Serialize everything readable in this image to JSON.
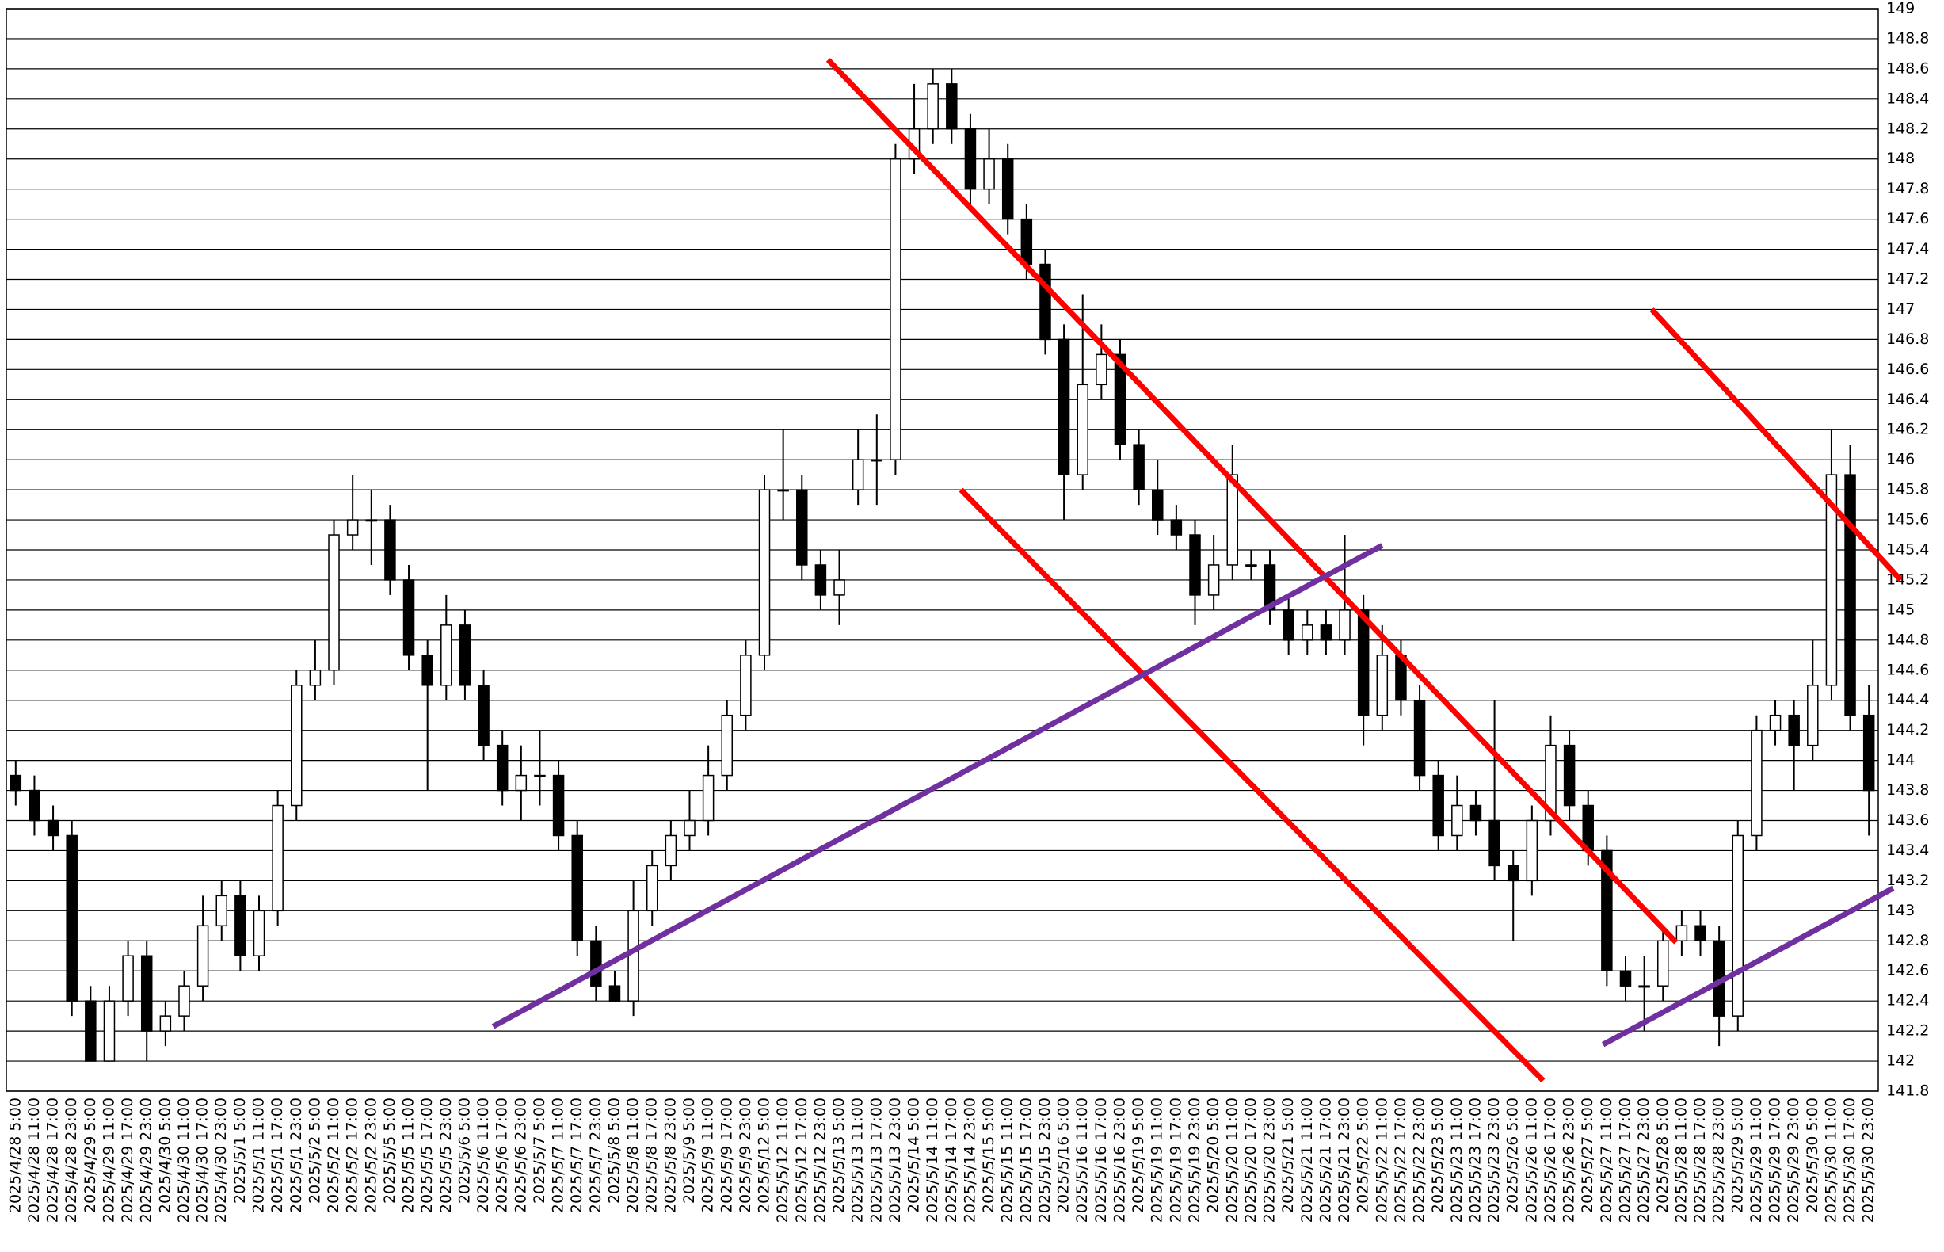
{
  "chart_data": {
    "type": "candlestick",
    "categories": [
      "2025/4/28 5:00",
      "2025/4/28 11:00",
      "2025/4/28 17:00",
      "2025/4/28 23:00",
      "2025/4/29 5:00",
      "2025/4/29 11:00",
      "2025/4/29 17:00",
      "2025/4/29 23:00",
      "2025/4/30 5:00",
      "2025/4/30 11:00",
      "2025/4/30 17:00",
      "2025/4/30 23:00",
      "2025/5/1 5:00",
      "2025/5/1 11:00",
      "2025/5/1 17:00",
      "2025/5/1 23:00",
      "2025/5/2 5:00",
      "2025/5/2 11:00",
      "2025/5/2 17:00",
      "2025/5/2 23:00",
      "2025/5/5 5:00",
      "2025/5/5 11:00",
      "2025/5/5 17:00",
      "2025/5/5 23:00",
      "2025/5/6 5:00",
      "2025/5/6 11:00",
      "2025/5/6 17:00",
      "2025/5/6 23:00",
      "2025/5/7 5:00",
      "2025/5/7 11:00",
      "2025/5/7 17:00",
      "2025/5/7 23:00",
      "2025/5/8 5:00",
      "2025/5/8 11:00",
      "2025/5/8 17:00",
      "2025/5/8 23:00",
      "2025/5/9 5:00",
      "2025/5/9 11:00",
      "2025/5/9 17:00",
      "2025/5/9 23:00",
      "2025/5/12 5:00",
      "2025/5/12 11:00",
      "2025/5/12 17:00",
      "2025/5/12 23:00",
      "2025/5/13 5:00",
      "2025/5/13 11:00",
      "2025/5/13 17:00",
      "2025/5/13 23:00",
      "2025/5/14 5:00",
      "2025/5/14 11:00",
      "2025/5/14 17:00",
      "2025/5/14 23:00",
      "2025/5/15 5:00",
      "2025/5/15 11:00",
      "2025/5/15 17:00",
      "2025/5/15 23:00",
      "2025/5/16 5:00",
      "2025/5/16 11:00",
      "2025/5/16 17:00",
      "2025/5/16 23:00",
      "2025/5/19 5:00",
      "2025/5/19 11:00",
      "2025/5/19 17:00",
      "2025/5/19 23:00",
      "2025/5/20 5:00",
      "2025/5/20 11:00",
      "2025/5/20 17:00",
      "2025/5/20 23:00",
      "2025/5/21 5:00",
      "2025/5/21 11:00",
      "2025/5/21 17:00",
      "2025/5/21 23:00",
      "2025/5/22 5:00",
      "2025/5/22 11:00",
      "2025/5/22 17:00",
      "2025/5/22 23:00",
      "2025/5/23 5:00",
      "2025/5/23 11:00",
      "2025/5/23 17:00",
      "2025/5/23 23:00",
      "2025/5/26 5:00",
      "2025/5/26 11:00",
      "2025/5/26 17:00",
      "2025/5/26 23:00",
      "2025/5/27 5:00",
      "2025/5/27 11:00",
      "2025/5/27 17:00",
      "2025/5/27 23:00",
      "2025/5/28 5:00",
      "2025/5/28 11:00",
      "2025/5/28 17:00",
      "2025/5/28 23:00",
      "2025/5/29 5:00",
      "2025/5/29 11:00",
      "2025/5/29 17:00",
      "2025/5/29 23:00",
      "2025/5/30 5:00",
      "2025/5/30 11:00",
      "2025/5/30 17:00",
      "2025/5/30 23:00"
    ],
    "ohlc": [
      [
        143.9,
        144.0,
        143.7,
        143.8
      ],
      [
        143.8,
        143.9,
        143.5,
        143.6
      ],
      [
        143.6,
        143.7,
        143.4,
        143.5
      ],
      [
        143.5,
        143.6,
        142.3,
        142.4
      ],
      [
        142.4,
        142.5,
        142.0,
        142.0
      ],
      [
        142.0,
        142.5,
        142.0,
        142.4
      ],
      [
        142.4,
        142.8,
        142.3,
        142.7
      ],
      [
        142.7,
        142.8,
        142.0,
        142.2
      ],
      [
        142.2,
        142.4,
        142.1,
        142.3
      ],
      [
        142.3,
        142.6,
        142.2,
        142.5
      ],
      [
        142.5,
        143.1,
        142.4,
        142.9
      ],
      [
        142.9,
        143.2,
        142.8,
        143.1
      ],
      [
        143.1,
        143.2,
        142.6,
        142.7
      ],
      [
        142.7,
        143.1,
        142.6,
        143.0
      ],
      [
        143.0,
        143.8,
        142.9,
        143.7
      ],
      [
        143.7,
        144.6,
        143.6,
        144.5
      ],
      [
        144.5,
        144.8,
        144.4,
        144.6
      ],
      [
        144.6,
        145.6,
        144.5,
        145.5
      ],
      [
        145.5,
        145.9,
        145.4,
        145.6
      ],
      [
        145.6,
        145.8,
        145.3,
        145.6
      ],
      [
        145.6,
        145.7,
        145.1,
        145.2
      ],
      [
        145.2,
        145.3,
        144.6,
        144.7
      ],
      [
        144.7,
        144.8,
        143.8,
        144.5
      ],
      [
        144.5,
        145.1,
        144.4,
        144.9
      ],
      [
        144.9,
        145.0,
        144.4,
        144.5
      ],
      [
        144.5,
        144.6,
        144.0,
        144.1
      ],
      [
        144.1,
        144.2,
        143.7,
        143.8
      ],
      [
        143.8,
        144.1,
        143.6,
        143.9
      ],
      [
        143.9,
        144.2,
        143.7,
        143.9
      ],
      [
        143.9,
        144.0,
        143.4,
        143.5
      ],
      [
        143.5,
        143.6,
        142.7,
        142.8
      ],
      [
        142.8,
        142.9,
        142.4,
        142.5
      ],
      [
        142.5,
        142.6,
        142.4,
        142.4
      ],
      [
        142.4,
        143.2,
        142.3,
        143.0
      ],
      [
        143.0,
        143.4,
        142.9,
        143.3
      ],
      [
        143.3,
        143.6,
        143.2,
        143.5
      ],
      [
        143.5,
        143.8,
        143.4,
        143.6
      ],
      [
        143.6,
        144.1,
        143.5,
        143.9
      ],
      [
        143.9,
        144.4,
        143.8,
        144.3
      ],
      [
        144.3,
        144.8,
        144.2,
        144.7
      ],
      [
        144.7,
        145.9,
        144.6,
        145.8
      ],
      [
        145.8,
        146.2,
        145.6,
        145.8
      ],
      [
        145.8,
        145.9,
        145.2,
        145.3
      ],
      [
        145.3,
        145.4,
        145.0,
        145.1
      ],
      [
        145.1,
        145.4,
        144.9,
        145.2
      ],
      [
        145.8,
        146.2,
        145.7,
        146.0
      ],
      [
        146.0,
        146.3,
        145.7,
        146.0
      ],
      [
        146.0,
        148.1,
        145.9,
        148.0
      ],
      [
        148.0,
        148.5,
        147.9,
        148.2
      ],
      [
        148.2,
        148.6,
        148.1,
        148.5
      ],
      [
        148.5,
        148.6,
        148.1,
        148.2
      ],
      [
        148.2,
        148.3,
        147.7,
        147.8
      ],
      [
        147.8,
        148.2,
        147.7,
        148.0
      ],
      [
        148.0,
        148.1,
        147.5,
        147.6
      ],
      [
        147.6,
        147.7,
        147.2,
        147.3
      ],
      [
        147.3,
        147.4,
        146.7,
        146.8
      ],
      [
        146.8,
        146.9,
        145.6,
        145.9
      ],
      [
        145.9,
        147.1,
        145.8,
        146.5
      ],
      [
        146.5,
        146.9,
        146.4,
        146.7
      ],
      [
        146.7,
        146.8,
        146.0,
        146.1
      ],
      [
        146.1,
        146.2,
        145.7,
        145.8
      ],
      [
        145.8,
        146.0,
        145.5,
        145.6
      ],
      [
        145.6,
        145.7,
        145.4,
        145.5
      ],
      [
        145.5,
        145.6,
        144.9,
        145.1
      ],
      [
        145.1,
        145.5,
        145.0,
        145.3
      ],
      [
        145.3,
        146.1,
        145.2,
        145.9
      ],
      [
        145.3,
        145.4,
        145.2,
        145.3
      ],
      [
        145.3,
        145.4,
        144.9,
        145.0
      ],
      [
        145.0,
        145.1,
        144.7,
        144.8
      ],
      [
        144.8,
        145.0,
        144.7,
        144.9
      ],
      [
        144.9,
        145.0,
        144.7,
        144.8
      ],
      [
        144.8,
        145.5,
        144.7,
        145.0
      ],
      [
        145.0,
        145.1,
        144.1,
        144.3
      ],
      [
        144.3,
        144.9,
        144.2,
        144.7
      ],
      [
        144.7,
        144.8,
        144.3,
        144.4
      ],
      [
        144.4,
        144.5,
        143.8,
        143.9
      ],
      [
        143.9,
        144.0,
        143.4,
        143.5
      ],
      [
        143.5,
        143.9,
        143.4,
        143.7
      ],
      [
        143.7,
        143.8,
        143.5,
        143.6
      ],
      [
        143.6,
        144.4,
        143.2,
        143.3
      ],
      [
        143.3,
        143.4,
        142.8,
        143.2
      ],
      [
        143.2,
        143.7,
        143.1,
        143.6
      ],
      [
        143.6,
        144.3,
        143.5,
        144.1
      ],
      [
        144.1,
        144.2,
        143.6,
        143.7
      ],
      [
        143.7,
        143.8,
        143.3,
        143.4
      ],
      [
        143.4,
        143.5,
        142.5,
        142.6
      ],
      [
        142.6,
        142.7,
        142.4,
        142.5
      ],
      [
        142.5,
        142.7,
        142.2,
        142.5
      ],
      [
        142.5,
        142.9,
        142.4,
        142.8
      ],
      [
        142.8,
        143.0,
        142.7,
        142.9
      ],
      [
        142.9,
        143.0,
        142.7,
        142.8
      ],
      [
        142.8,
        142.9,
        142.1,
        142.3
      ],
      [
        142.3,
        143.6,
        142.2,
        143.5
      ],
      [
        143.5,
        144.3,
        143.4,
        144.2
      ],
      [
        144.2,
        144.4,
        144.1,
        144.3
      ],
      [
        144.3,
        144.4,
        143.8,
        144.1
      ],
      [
        144.1,
        144.8,
        144.0,
        144.5
      ],
      [
        144.5,
        146.2,
        144.4,
        145.9
      ],
      [
        145.9,
        146.1,
        144.2,
        144.3
      ],
      [
        144.3,
        144.5,
        143.5,
        143.8
      ]
    ],
    "ylim": [
      141.8,
      149
    ],
    "yticks": [
      141.8,
      142,
      142.2,
      142.4,
      142.6,
      142.8,
      143,
      143.2,
      143.4,
      143.6,
      143.8,
      144,
      144.2,
      144.4,
      144.6,
      144.8,
      145,
      145.2,
      145.4,
      145.6,
      145.8,
      146,
      146.2,
      146.4,
      146.6,
      146.8,
      147,
      147.2,
      147.4,
      147.6,
      147.8,
      148,
      148.2,
      148.4,
      148.6,
      148.8,
      149
    ],
    "grid": true,
    "up_color": "#ffffff",
    "down_color": "#000000",
    "trendlines": [
      {
        "color": "#ff0000",
        "x": [
          43.4,
          88.7
        ],
        "y": [
          148.66,
          142.79
        ]
      },
      {
        "color": "#ff0000",
        "x": [
          50.5,
          81.6
        ],
        "y": [
          145.8,
          141.87
        ]
      },
      {
        "color": "#ff0000",
        "x": [
          87.4,
          100.7
        ],
        "y": [
          147.0,
          145.2
        ]
      },
      {
        "color": "#7030a0",
        "x": [
          25.5,
          73.0
        ],
        "y": [
          142.23,
          145.43
        ]
      },
      {
        "color": "#7030a0",
        "x": [
          84.8,
          100.3
        ],
        "y": [
          142.11,
          143.15
        ]
      }
    ]
  }
}
